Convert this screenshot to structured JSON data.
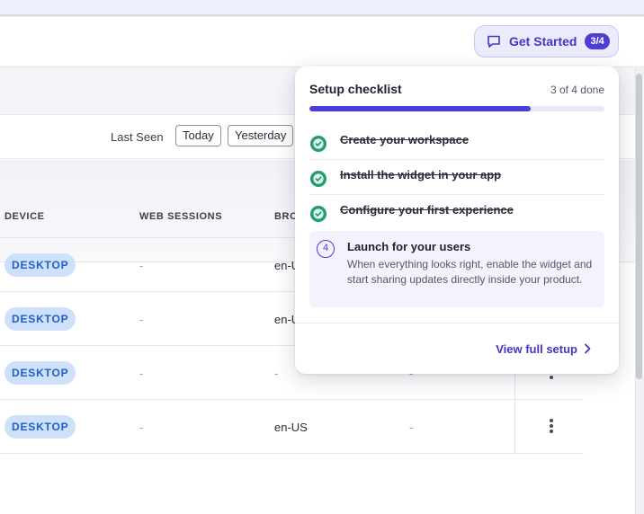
{
  "header": {
    "get_started_label": "Get Started",
    "get_started_badge": "3/4"
  },
  "filters": {
    "last_seen_label": "Last Seen",
    "chips": [
      "Today",
      "Yesterday"
    ]
  },
  "table": {
    "columns": [
      "DEVICE",
      "WEB SESSIONS",
      "BRO"
    ],
    "rows": [
      {
        "device": "DESKTOP",
        "web_sessions": "-",
        "browser_lang": "en-U",
        "extra": ""
      },
      {
        "device": "DESKTOP",
        "web_sessions": "-",
        "browser_lang": "en-US",
        "extra": "-"
      },
      {
        "device": "DESKTOP",
        "web_sessions": "-",
        "browser_lang": "-",
        "extra": "-"
      },
      {
        "device": "DESKTOP",
        "web_sessions": "-",
        "browser_lang": "en-US",
        "extra": "-"
      }
    ]
  },
  "checklist": {
    "title": "Setup checklist",
    "count": "3 of 4 done",
    "progress_fraction": 0.75,
    "completed": [
      "Create your workspace",
      "Install the widget in your app",
      "Configure your first experience"
    ],
    "active": {
      "number": "4",
      "title": "Launch for your users",
      "description": "When everything looks right, enable the widget and start sharing updates directly inside your product."
    },
    "view_link": "View full setup"
  },
  "colors": {
    "accent": "#4b3fd6",
    "check_green": "#1f9e6e",
    "device_badge_bg": "#cfe0fa"
  },
  "icons": {
    "get_started": "chat-bubble-icon",
    "completed": "check-circle-icon",
    "link": "chevron-right-icon",
    "row_action": "kebab-icon"
  }
}
